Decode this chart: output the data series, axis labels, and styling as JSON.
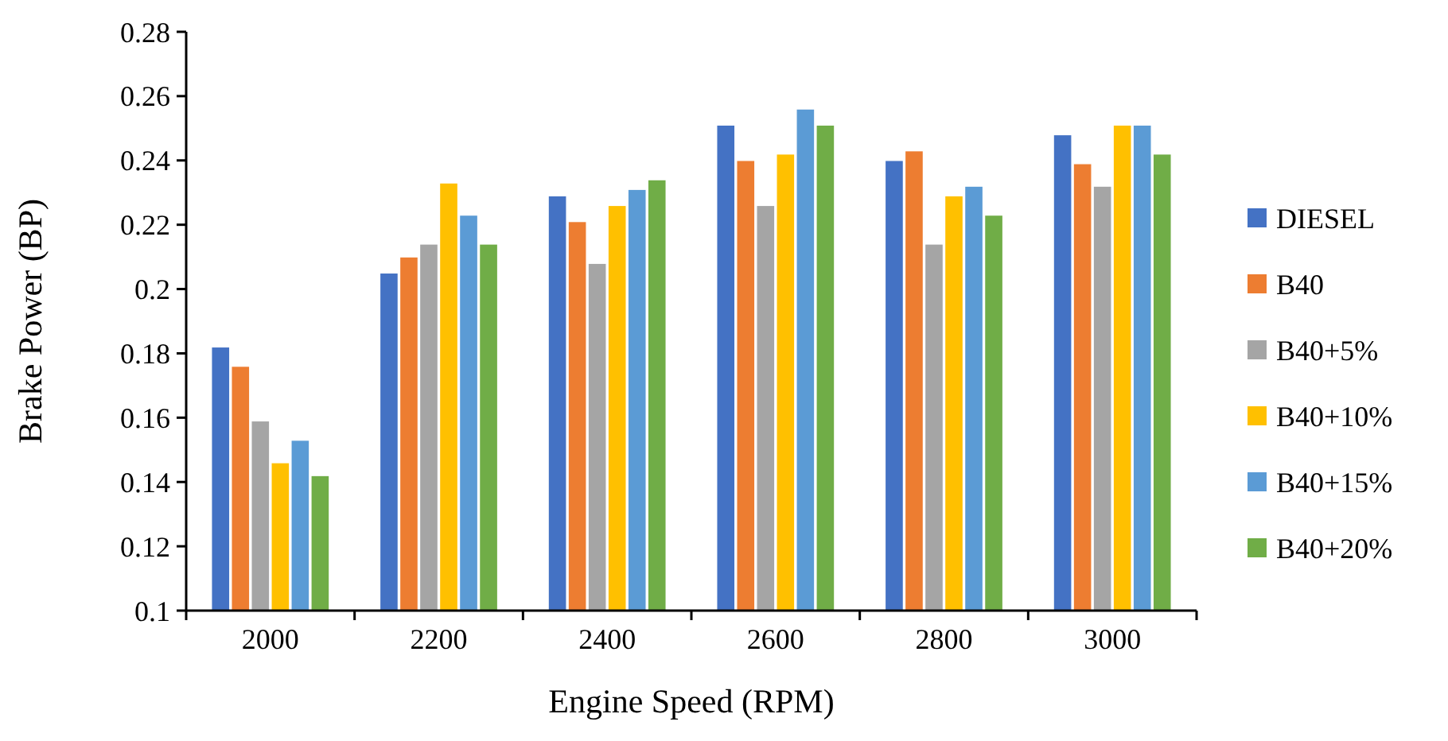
{
  "chart_data": {
    "type": "bar",
    "xlabel": "Engine Speed (RPM)",
    "ylabel": "Brake Power (BP)",
    "categories": [
      "2000",
      "2200",
      "2400",
      "2600",
      "2800",
      "3000"
    ],
    "ylim": [
      0.1,
      0.28
    ],
    "yticks": [
      0.1,
      0.12,
      0.14,
      0.16,
      0.18,
      0.2,
      0.22,
      0.24,
      0.26,
      0.28
    ],
    "grid": false,
    "legend": "right",
    "series": [
      {
        "name": "DIESEL",
        "color": "#4472c4",
        "values": [
          0.182,
          0.205,
          0.229,
          0.251,
          0.24,
          0.248
        ]
      },
      {
        "name": "B40",
        "color": "#ed7d31",
        "values": [
          0.176,
          0.21,
          0.221,
          0.24,
          0.243,
          0.239
        ]
      },
      {
        "name": "B40+5%",
        "color": "#a5a5a5",
        "values": [
          0.159,
          0.214,
          0.208,
          0.226,
          0.214,
          0.232
        ]
      },
      {
        "name": "B40+10%",
        "color": "#ffc000",
        "values": [
          0.146,
          0.233,
          0.226,
          0.242,
          0.229,
          0.251
        ]
      },
      {
        "name": "B40+15%",
        "color": "#5b9bd5",
        "values": [
          0.153,
          0.223,
          0.231,
          0.256,
          0.232,
          0.251
        ]
      },
      {
        "name": "B40+20%",
        "color": "#70ad47",
        "values": [
          0.142,
          0.214,
          0.234,
          0.251,
          0.223,
          0.242
        ]
      }
    ]
  }
}
